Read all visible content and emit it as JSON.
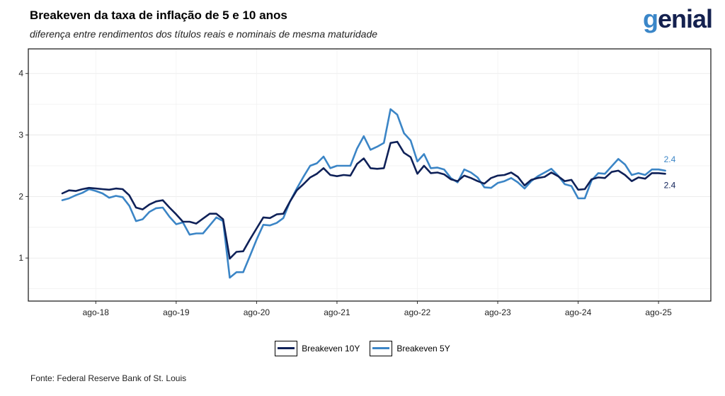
{
  "header": {
    "title": "Breakeven da taxa de inflação de 5 e 10 anos",
    "subtitle": "diferença entre rendimentos dos títulos reais e nominais de mesma maturidade",
    "logo": "genial",
    "source": "Fonte: Federal Reserve Bank of St. Louis"
  },
  "colors": {
    "series_10y": "#0f2158",
    "series_5y": "#3b85c6"
  },
  "chart_data": {
    "type": "line",
    "xlabel": "",
    "ylabel": "",
    "ylim": [
      0.3,
      4.4
    ],
    "yticks": [
      1,
      2,
      3,
      4
    ],
    "xticks": [
      "ago-18",
      "ago-19",
      "ago-20",
      "ago-21",
      "ago-22",
      "ago-23",
      "ago-24",
      "ago-25"
    ],
    "grid": true,
    "legend_position": "bottom",
    "x_unit": "monthly, 2018-03 to 2025-08",
    "series": [
      {
        "name": "Breakeven 10Y",
        "end_label": "2.4",
        "values": [
          2.05,
          2.1,
          2.09,
          2.12,
          2.14,
          2.13,
          2.12,
          2.11,
          2.13,
          2.12,
          2.02,
          1.82,
          1.79,
          1.87,
          1.92,
          1.94,
          1.82,
          1.71,
          1.59,
          1.59,
          1.56,
          1.64,
          1.72,
          1.72,
          1.63,
          0.99,
          1.1,
          1.11,
          1.3,
          1.48,
          1.66,
          1.65,
          1.71,
          1.72,
          1.92,
          2.1,
          2.2,
          2.31,
          2.37,
          2.46,
          2.35,
          2.33,
          2.35,
          2.34,
          2.53,
          2.62,
          2.46,
          2.45,
          2.46,
          2.87,
          2.89,
          2.71,
          2.64,
          2.37,
          2.5,
          2.38,
          2.39,
          2.36,
          2.28,
          2.25,
          2.34,
          2.3,
          2.25,
          2.21,
          2.3,
          2.34,
          2.35,
          2.39,
          2.32,
          2.18,
          2.27,
          2.3,
          2.32,
          2.39,
          2.33,
          2.25,
          2.27,
          2.11,
          2.12,
          2.28,
          2.31,
          2.3,
          2.4,
          2.42,
          2.35,
          2.25,
          2.31,
          2.29,
          2.38,
          2.38,
          2.37
        ]
      },
      {
        "name": "Breakeven 5Y",
        "end_label": "2.4",
        "values": [
          1.94,
          1.97,
          2.02,
          2.06,
          2.12,
          2.09,
          2.05,
          1.98,
          2.01,
          1.99,
          1.85,
          1.6,
          1.63,
          1.75,
          1.81,
          1.82,
          1.67,
          1.55,
          1.58,
          1.38,
          1.4,
          1.4,
          1.53,
          1.66,
          1.6,
          0.68,
          0.77,
          0.77,
          1.03,
          1.3,
          1.54,
          1.53,
          1.57,
          1.65,
          1.92,
          2.13,
          2.32,
          2.5,
          2.54,
          2.65,
          2.46,
          2.5,
          2.5,
          2.5,
          2.78,
          2.98,
          2.76,
          2.81,
          2.87,
          3.42,
          3.33,
          3.03,
          2.91,
          2.57,
          2.69,
          2.46,
          2.47,
          2.44,
          2.3,
          2.23,
          2.44,
          2.39,
          2.31,
          2.15,
          2.14,
          2.22,
          2.25,
          2.3,
          2.23,
          2.13,
          2.25,
          2.33,
          2.39,
          2.45,
          2.34,
          2.2,
          2.17,
          1.97,
          1.97,
          2.26,
          2.38,
          2.37,
          2.49,
          2.61,
          2.52,
          2.35,
          2.38,
          2.35,
          2.44,
          2.44,
          2.42
        ]
      }
    ]
  }
}
